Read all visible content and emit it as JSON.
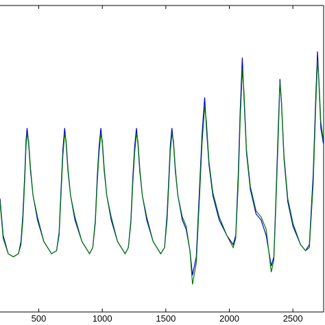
{
  "chart_data": {
    "type": "line",
    "x": [
      195,
      220,
      260,
      300,
      340,
      360,
      375,
      390,
      400,
      408,
      420,
      435,
      455,
      490,
      540,
      600,
      640,
      660,
      675,
      690,
      704,
      715,
      730,
      750,
      785,
      840,
      900,
      925,
      945,
      960,
      975,
      989,
      1000,
      1015,
      1035,
      1070,
      1120,
      1180,
      1205,
      1225,
      1240,
      1255,
      1269,
      1280,
      1295,
      1315,
      1350,
      1400,
      1460,
      1490,
      1510,
      1525,
      1535,
      1548,
      1560,
      1575,
      1595,
      1630,
      1660,
      1690,
      1710,
      1740,
      1765,
      1785,
      1806,
      1820,
      1840,
      1870,
      1920,
      1980,
      2030,
      2050,
      2070,
      2085,
      2102,
      2115,
      2135,
      2165,
      2210,
      2250,
      2290,
      2330,
      2350,
      2365,
      2385,
      2398,
      2410,
      2430,
      2460,
      2500,
      2560,
      2600,
      2630,
      2660,
      2680,
      2694,
      2705,
      2720,
      2740
    ],
    "series": [
      {
        "color": "#0000cc",
        "values": [
          37,
          25,
          19,
          18,
          19,
          23,
          32,
          45,
          56,
          60,
          55,
          46,
          38,
          30,
          23,
          19,
          20,
          26,
          40,
          53,
          60,
          55,
          46,
          38,
          30,
          23,
          19,
          21,
          30,
          44,
          54,
          60,
          55,
          46,
          38,
          30,
          23,
          19,
          21,
          30,
          44,
          54,
          60,
          55,
          46,
          38,
          30,
          23,
          19,
          21,
          32,
          45,
          54,
          60,
          55,
          46,
          38,
          30,
          27,
          20,
          12,
          18,
          40,
          58,
          70,
          60,
          48,
          38,
          30,
          25,
          22,
          25,
          45,
          65,
          83,
          70,
          52,
          40,
          32,
          30,
          25,
          15,
          18,
          35,
          60,
          76,
          68,
          50,
          36,
          28,
          22,
          20,
          22,
          45,
          70,
          85,
          75,
          60,
          55
        ]
      },
      {
        "color": "#007700",
        "values": [
          36,
          24,
          19,
          18,
          19,
          22,
          30,
          43,
          54,
          58,
          56,
          47,
          38,
          31,
          23,
          19,
          20,
          25,
          38,
          51,
          58,
          56,
          47,
          38,
          31,
          23,
          19,
          21,
          29,
          42,
          52,
          58,
          56,
          47,
          38,
          31,
          23,
          19,
          21,
          29,
          42,
          52,
          58,
          56,
          47,
          38,
          31,
          23,
          19,
          21,
          30,
          43,
          52,
          58,
          56,
          47,
          38,
          31,
          28,
          20,
          9,
          16,
          37,
          55,
          67,
          62,
          49,
          39,
          31,
          25,
          21,
          24,
          42,
          62,
          79,
          72,
          53,
          41,
          33,
          31,
          27,
          13,
          17,
          33,
          57,
          75,
          69,
          51,
          37,
          29,
          22,
          20,
          21,
          42,
          67,
          82,
          76,
          62,
          56
        ]
      }
    ],
    "xlim": [
      195,
      2742
    ],
    "ylim": [
      0,
      100
    ],
    "xticks": [
      500,
      1000,
      1500,
      2000,
      2500
    ]
  }
}
